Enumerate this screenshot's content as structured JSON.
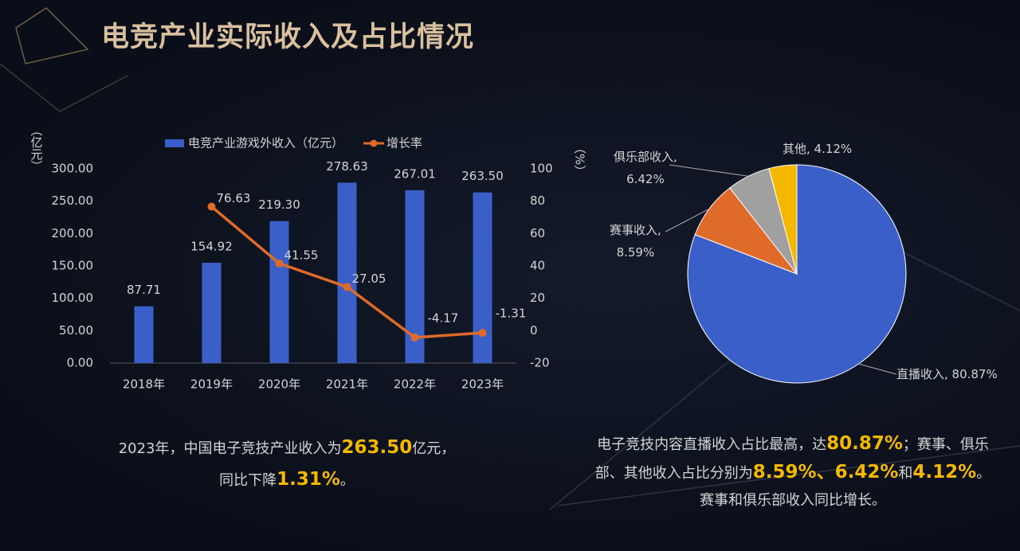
{
  "title": "电竞产业实际收入及占比情况",
  "chart_data": [
    {
      "type": "bar",
      "categories": [
        "2018年",
        "2019年",
        "2020年",
        "2021年",
        "2022年",
        "2023年"
      ],
      "series": [
        {
          "name": "电竞产业游戏外收入（亿元）",
          "type": "bar",
          "color": "#3a5fc8",
          "values": [
            87.71,
            154.92,
            219.3,
            278.63,
            267.01,
            263.5
          ],
          "value_labels": [
            "87.71",
            "154.92",
            "219.30",
            "278.63",
            "267.01",
            "263.50"
          ]
        },
        {
          "name": "增长率",
          "type": "line",
          "axis": "y2",
          "color": "#e06a2a",
          "values": [
            null,
            76.63,
            41.55,
            27.05,
            -4.17,
            -1.31
          ]
        }
      ],
      "ylabel": "（亿元）",
      "y2label": "（%）",
      "ylim": [
        0,
        300
      ],
      "yticks": [
        {
          "value": 0,
          "label": "0.00"
        },
        {
          "value": 50,
          "label": "50.00"
        },
        {
          "value": 100,
          "label": "100.00"
        },
        {
          "value": 150,
          "label": "150.00"
        },
        {
          "value": 200,
          "label": "200.00"
        },
        {
          "value": 250,
          "label": "250.00"
        },
        {
          "value": 300,
          "label": "300.00"
        }
      ],
      "y2lim": [
        -20,
        100
      ],
      "y2ticks": [
        -20,
        0,
        20,
        40,
        60,
        80,
        100
      ],
      "grid": false,
      "legend": "top"
    },
    {
      "type": "pie",
      "values": [
        80.87,
        8.59,
        6.42,
        4.12
      ],
      "value_labels": [
        "直播收入, 80.87%",
        "赛事收入,\n8.59%",
        "俱乐部收入,\n6.42%",
        "其他, 4.12%"
      ],
      "colors": [
        "#3a5fc8",
        "#e06a2a",
        "#a0a0a0",
        "#f5b800"
      ]
    }
  ],
  "captions": {
    "left": [
      [
        "2023年，中国电子竞技产业收入为",
        "263.50",
        "亿元，"
      ],
      [
        "同比下降",
        "1.31%",
        "。"
      ]
    ],
    "right": [
      [
        "电子竞技内容直播收入占比最高，达",
        "80.87%",
        "；赛事、俱乐"
      ],
      [
        "部、其他收入占比分别为",
        "8.59%、6.42%",
        "和",
        "4.12%",
        "。"
      ],
      [
        "赛事和俱乐部收入同比增长。"
      ]
    ]
  }
}
